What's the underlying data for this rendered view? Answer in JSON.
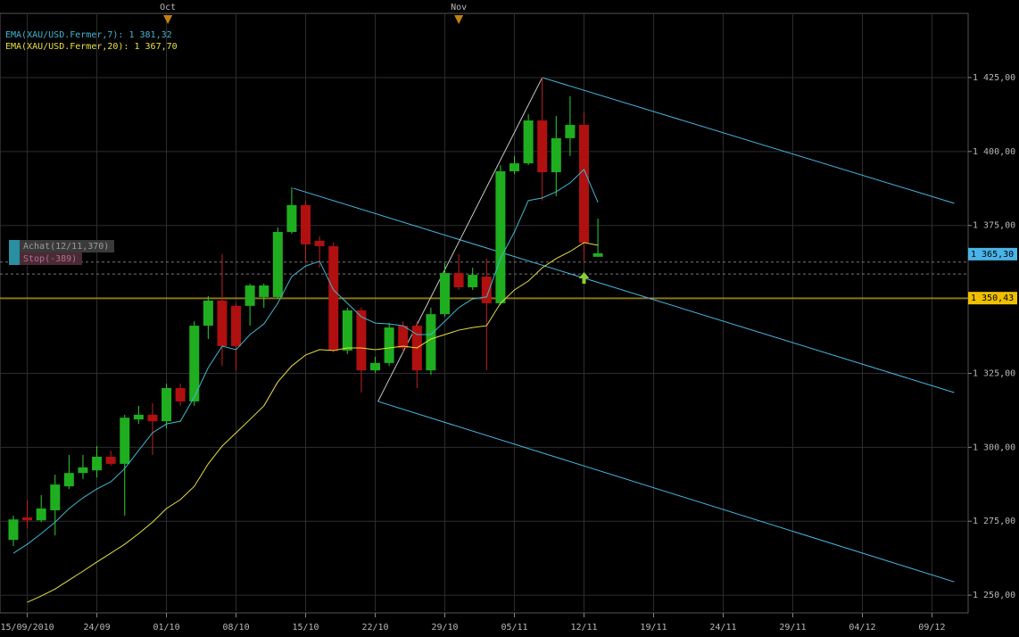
{
  "chart_data": {
    "type": "candlestick",
    "up_color": "#1fae1f",
    "down_color": "#b01010",
    "wick_color": "#2fd02f",
    "down_wick_color": "#c02020",
    "open": [
      1268.7,
      1276.3,
      1275.3,
      1278.7,
      1286.8,
      1291.3,
      1292.2,
      1296.8,
      1294.4,
      1309.4,
      1311.0,
      1308.8,
      1320.0,
      1315.5,
      1341.1,
      1349.6,
      1347.8,
      1347.8,
      1350.8,
      1350.8,
      1372.8,
      1381.9,
      1369.8,
      1368.0,
      1332.7,
      1346.3,
      1326.0,
      1328.5,
      1341.1,
      1341.1,
      1326.0,
      1345.0,
      1358.9,
      1354.1,
      1357.7,
      1348.7,
      1393.3,
      1396.0,
      1410.5,
      1393.0,
      1404.5,
      1409.0,
      1364.4
    ],
    "high": [
      1276.9,
      1282.3,
      1283.8,
      1290.7,
      1297.4,
      1297.4,
      1300.4,
      1298.9,
      1311.0,
      1314.0,
      1314.9,
      1321.5,
      1321.5,
      1342.6,
      1351.1,
      1365.3,
      1348.7,
      1355.3,
      1355.3,
      1374.3,
      1387.9,
      1383.4,
      1371.3,
      1369.2,
      1347.2,
      1347.2,
      1330.6,
      1342.0,
      1342.6,
      1342.6,
      1347.2,
      1362.3,
      1365.3,
      1360.7,
      1363.8,
      1395.4,
      1398.5,
      1412.6,
      1425.0,
      1412.0,
      1418.7,
      1413.5,
      1377.3
    ],
    "low": [
      1266.6,
      1272.6,
      1274.7,
      1270.2,
      1285.9,
      1289.2,
      1289.8,
      1293.8,
      1276.9,
      1307.9,
      1297.4,
      1306.4,
      1314.0,
      1314.0,
      1336.6,
      1327.5,
      1326.0,
      1341.1,
      1347.2,
      1350.2,
      1372.2,
      1362.3,
      1360.7,
      1332.1,
      1331.5,
      1318.5,
      1325.1,
      1327.5,
      1332.1,
      1320.0,
      1324.5,
      1344.1,
      1353.2,
      1353.2,
      1326.0,
      1348.1,
      1392.4,
      1395.4,
      1383.4,
      1384.9,
      1398.5,
      1362.3,
      1364.4
    ],
    "close": [
      1275.6,
      1275.3,
      1279.3,
      1287.4,
      1291.3,
      1293.2,
      1296.8,
      1294.4,
      1310.0,
      1311.0,
      1308.8,
      1320.0,
      1315.5,
      1341.1,
      1349.6,
      1334.2,
      1334.2,
      1354.7,
      1354.7,
      1372.8,
      1381.9,
      1368.6,
      1368.0,
      1332.7,
      1346.3,
      1326.0,
      1328.5,
      1340.5,
      1333.6,
      1326.0,
      1345.0,
      1358.9,
      1354.1,
      1358.3,
      1348.7,
      1393.3,
      1396.0,
      1410.5,
      1393.0,
      1404.5,
      1409.0,
      1369.2,
      1365.6
    ],
    "series": [
      {
        "name": "EMA(XAU/USD.Fermer,7): 1 381,32",
        "color": "#3fb8d0",
        "values": [
          1264.2,
          1267.2,
          1270.8,
          1274.7,
          1279.3,
          1282.9,
          1285.9,
          1288.3,
          1292.8,
          1298.9,
          1304.9,
          1307.9,
          1308.8,
          1317.0,
          1326.9,
          1334.2,
          1333.0,
          1338.1,
          1341.7,
          1348.7,
          1357.7,
          1361.3,
          1362.9,
          1353.2,
          1348.7,
          1344.1,
          1342.0,
          1341.7,
          1341.1,
          1338.1,
          1338.1,
          1342.6,
          1347.2,
          1350.2,
          1350.8,
          1363.8,
          1372.8,
          1383.4,
          1384.3,
          1386.4,
          1389.4,
          1393.9,
          1382.8
        ]
      },
      {
        "name": "EMA(XAU/USD.Fermer,20): 1 367,70",
        "color": "#e8e040",
        "values": [
          null,
          1247.6,
          1249.7,
          1252.1,
          1255.1,
          1258.1,
          1261.2,
          1264.2,
          1267.2,
          1270.8,
          1274.7,
          1279.3,
          1282.3,
          1286.8,
          1294.4,
          1300.4,
          1304.9,
          1309.4,
          1314.0,
          1322.1,
          1327.5,
          1331.2,
          1333.0,
          1332.7,
          1333.6,
          1333.6,
          1333.0,
          1333.6,
          1334.2,
          1333.6,
          1336.6,
          1338.1,
          1339.6,
          1340.5,
          1341.1,
          1348.7,
          1353.2,
          1356.2,
          1360.7,
          1363.8,
          1366.2,
          1369.2,
          1368.3
        ]
      }
    ],
    "xlim": [
      -0.96,
      68.6
    ],
    "ylim": [
      1244.6,
      1446.7
    ],
    "xticks": [
      {
        "value": 1,
        "label": "15/09/2010"
      },
      {
        "value": 6,
        "label": "24/09"
      },
      {
        "value": 11,
        "label": "01/10"
      },
      {
        "value": 16,
        "label": "08/10"
      },
      {
        "value": 21,
        "label": "15/10"
      },
      {
        "value": 26,
        "label": "22/10"
      },
      {
        "value": 31,
        "label": "29/10"
      },
      {
        "value": 36,
        "label": "05/11"
      },
      {
        "value": 41,
        "label": "12/11"
      },
      {
        "value": 46,
        "label": "19/11"
      },
      {
        "value": 51,
        "label": "24/11"
      },
      {
        "value": 56,
        "label": "29/11"
      },
      {
        "value": 61,
        "label": "04/12"
      },
      {
        "value": 66,
        "label": "09/12"
      }
    ],
    "yticks": [
      {
        "value": 1250,
        "label": "1 250,00"
      },
      {
        "value": 1275,
        "label": "1 275,00"
      },
      {
        "value": 1300,
        "label": "1 300,00"
      },
      {
        "value": 1325,
        "label": "1 325,00"
      },
      {
        "value": 1350,
        "label": "1 350,00"
      },
      {
        "value": 1375,
        "label": "1 375,00"
      },
      {
        "value": 1400,
        "label": "1 400,00"
      },
      {
        "value": 1425,
        "label": "1 425,00"
      }
    ],
    "month_markers": [
      {
        "value": 11.1,
        "label": "Oct"
      },
      {
        "value": 32.0,
        "label": "Nov"
      }
    ],
    "price_tags": [
      {
        "value": 1365.3,
        "label": "1 365,30",
        "color": "#4ab4e8"
      },
      {
        "value": 1350.43,
        "label": "1 350,43",
        "color": "#f0c000"
      }
    ],
    "hline": {
      "value": 1350.43,
      "color": "#e8c000"
    },
    "orders": [
      {
        "label": "Achat(12/11,370)",
        "value": 1362.6
      },
      {
        "label": "Stop(-389)",
        "value": 1358.6
      }
    ],
    "trendlines": [
      {
        "color": "#45b8e8",
        "x": [
          38,
          67.6
        ],
        "values": [
          1425.0,
          1382.5
        ]
      },
      {
        "color": "#45b8e8",
        "x": [
          20.1,
          67.6
        ],
        "values": [
          1387.6,
          1318.5
        ]
      },
      {
        "color": "#45b8e8",
        "x": [
          26.2,
          67.6
        ],
        "values": [
          1315.5,
          1254.5
        ]
      },
      {
        "color": "#c8c8c8",
        "x": [
          26.2,
          38
        ],
        "values": [
          1315.5,
          1425.0
        ]
      }
    ],
    "signal": {
      "x": 41,
      "value": 1357.1,
      "color": "#8ad030"
    }
  }
}
